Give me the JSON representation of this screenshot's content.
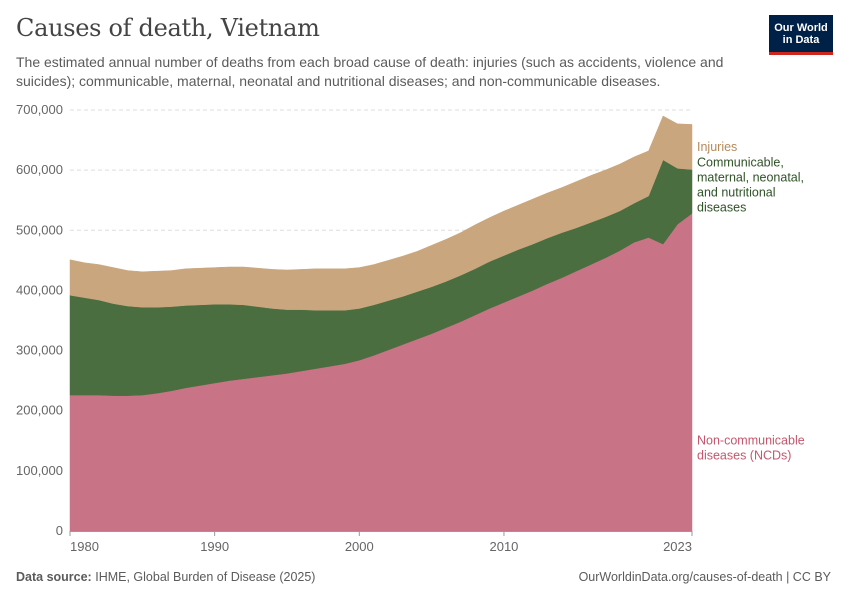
{
  "header": {
    "title": "Causes of death, Vietnam",
    "subtitle": "The estimated annual number of deaths from each broad cause of death: injuries (such as accidents, violence and suicides); communicable, maternal, neonatal and nutritional diseases; and non-communicable diseases."
  },
  "logo": {
    "line1": "Our World",
    "line2": "in Data"
  },
  "footer": {
    "source_label": "Data source:",
    "source_text": "IHME, Global Burden of Disease (2025)",
    "url": "OurWorldinData.org/causes-of-death | CC BY"
  },
  "colors": {
    "ncd": "#c97386",
    "communicable": "#4a6e40",
    "injuries": "#c9a67e",
    "label_ncd": "#c4576d",
    "label_communicable": "#2f5227",
    "label_injuries": "#b58a5a",
    "grid": "#dddddd",
    "axis_text": "#666666"
  },
  "chart_data": {
    "type": "area",
    "stacked": true,
    "title": "Causes of death, Vietnam",
    "xlabel": "",
    "ylabel": "",
    "xlim": [
      1980,
      2023
    ],
    "ylim": [
      0,
      700000
    ],
    "yticks": [
      0,
      100000,
      200000,
      300000,
      400000,
      500000,
      600000,
      700000
    ],
    "ytick_labels": [
      "0",
      "100,000",
      "200,000",
      "300,000",
      "400,000",
      "500,000",
      "600,000",
      "700,000"
    ],
    "xticks": [
      1980,
      1990,
      2000,
      2010,
      2023
    ],
    "xtick_labels": [
      "1980",
      "1990",
      "2000",
      "2010",
      "2023"
    ],
    "grid": true,
    "x": [
      1980,
      1981,
      1982,
      1983,
      1984,
      1985,
      1986,
      1987,
      1988,
      1989,
      1990,
      1991,
      1992,
      1993,
      1994,
      1995,
      1996,
      1997,
      1998,
      1999,
      2000,
      2001,
      2002,
      2003,
      2004,
      2005,
      2006,
      2007,
      2008,
      2009,
      2010,
      2011,
      2012,
      2013,
      2014,
      2015,
      2016,
      2017,
      2018,
      2019,
      2020,
      2021,
      2022,
      2023
    ],
    "series": [
      {
        "name": "Non-communicable diseases (NCDs)",
        "label_lines": [
          "Non-communicable",
          "diseases (NCDs)"
        ],
        "values": [
          226000,
          226000,
          226000,
          225000,
          225000,
          226000,
          229000,
          233000,
          238000,
          242000,
          246000,
          250000,
          253000,
          256000,
          259000,
          262000,
          266000,
          270000,
          274000,
          278000,
          284000,
          292000,
          301000,
          310000,
          319000,
          328000,
          338000,
          348000,
          359000,
          370000,
          380000,
          390000,
          400000,
          411000,
          421000,
          432000,
          443000,
          454000,
          466000,
          480000,
          488000,
          477000,
          510000,
          528000
        ]
      },
      {
        "name": "Communicable, maternal, neonatal, and nutritional diseases",
        "label_lines": [
          "Communicable,",
          "maternal, neonatal,",
          "and nutritional",
          "diseases"
        ],
        "values": [
          166000,
          162000,
          158000,
          153000,
          149000,
          146000,
          143000,
          140000,
          137000,
          134000,
          131000,
          127000,
          123000,
          117000,
          111000,
          106000,
          102000,
          97000,
          93000,
          89000,
          86000,
          84000,
          82000,
          80000,
          79000,
          78000,
          77000,
          77000,
          77000,
          78000,
          78000,
          78000,
          77000,
          76000,
          75000,
          72000,
          70000,
          68000,
          66000,
          65000,
          69000,
          140000,
          93000,
          73000
        ]
      },
      {
        "name": "Injuries",
        "label_lines": [
          "Injuries"
        ],
        "values": [
          59000,
          58000,
          59000,
          60000,
          59000,
          59000,
          60000,
          60000,
          61000,
          61000,
          61000,
          62000,
          63000,
          64000,
          65000,
          66000,
          67000,
          69000,
          69000,
          69000,
          68000,
          67000,
          67000,
          67000,
          67000,
          69000,
          70000,
          71000,
          73000,
          73000,
          74000,
          74000,
          75000,
          75000,
          75000,
          77000,
          78000,
          78000,
          78000,
          77000,
          75000,
          73000,
          74000,
          75000
        ]
      }
    ]
  }
}
